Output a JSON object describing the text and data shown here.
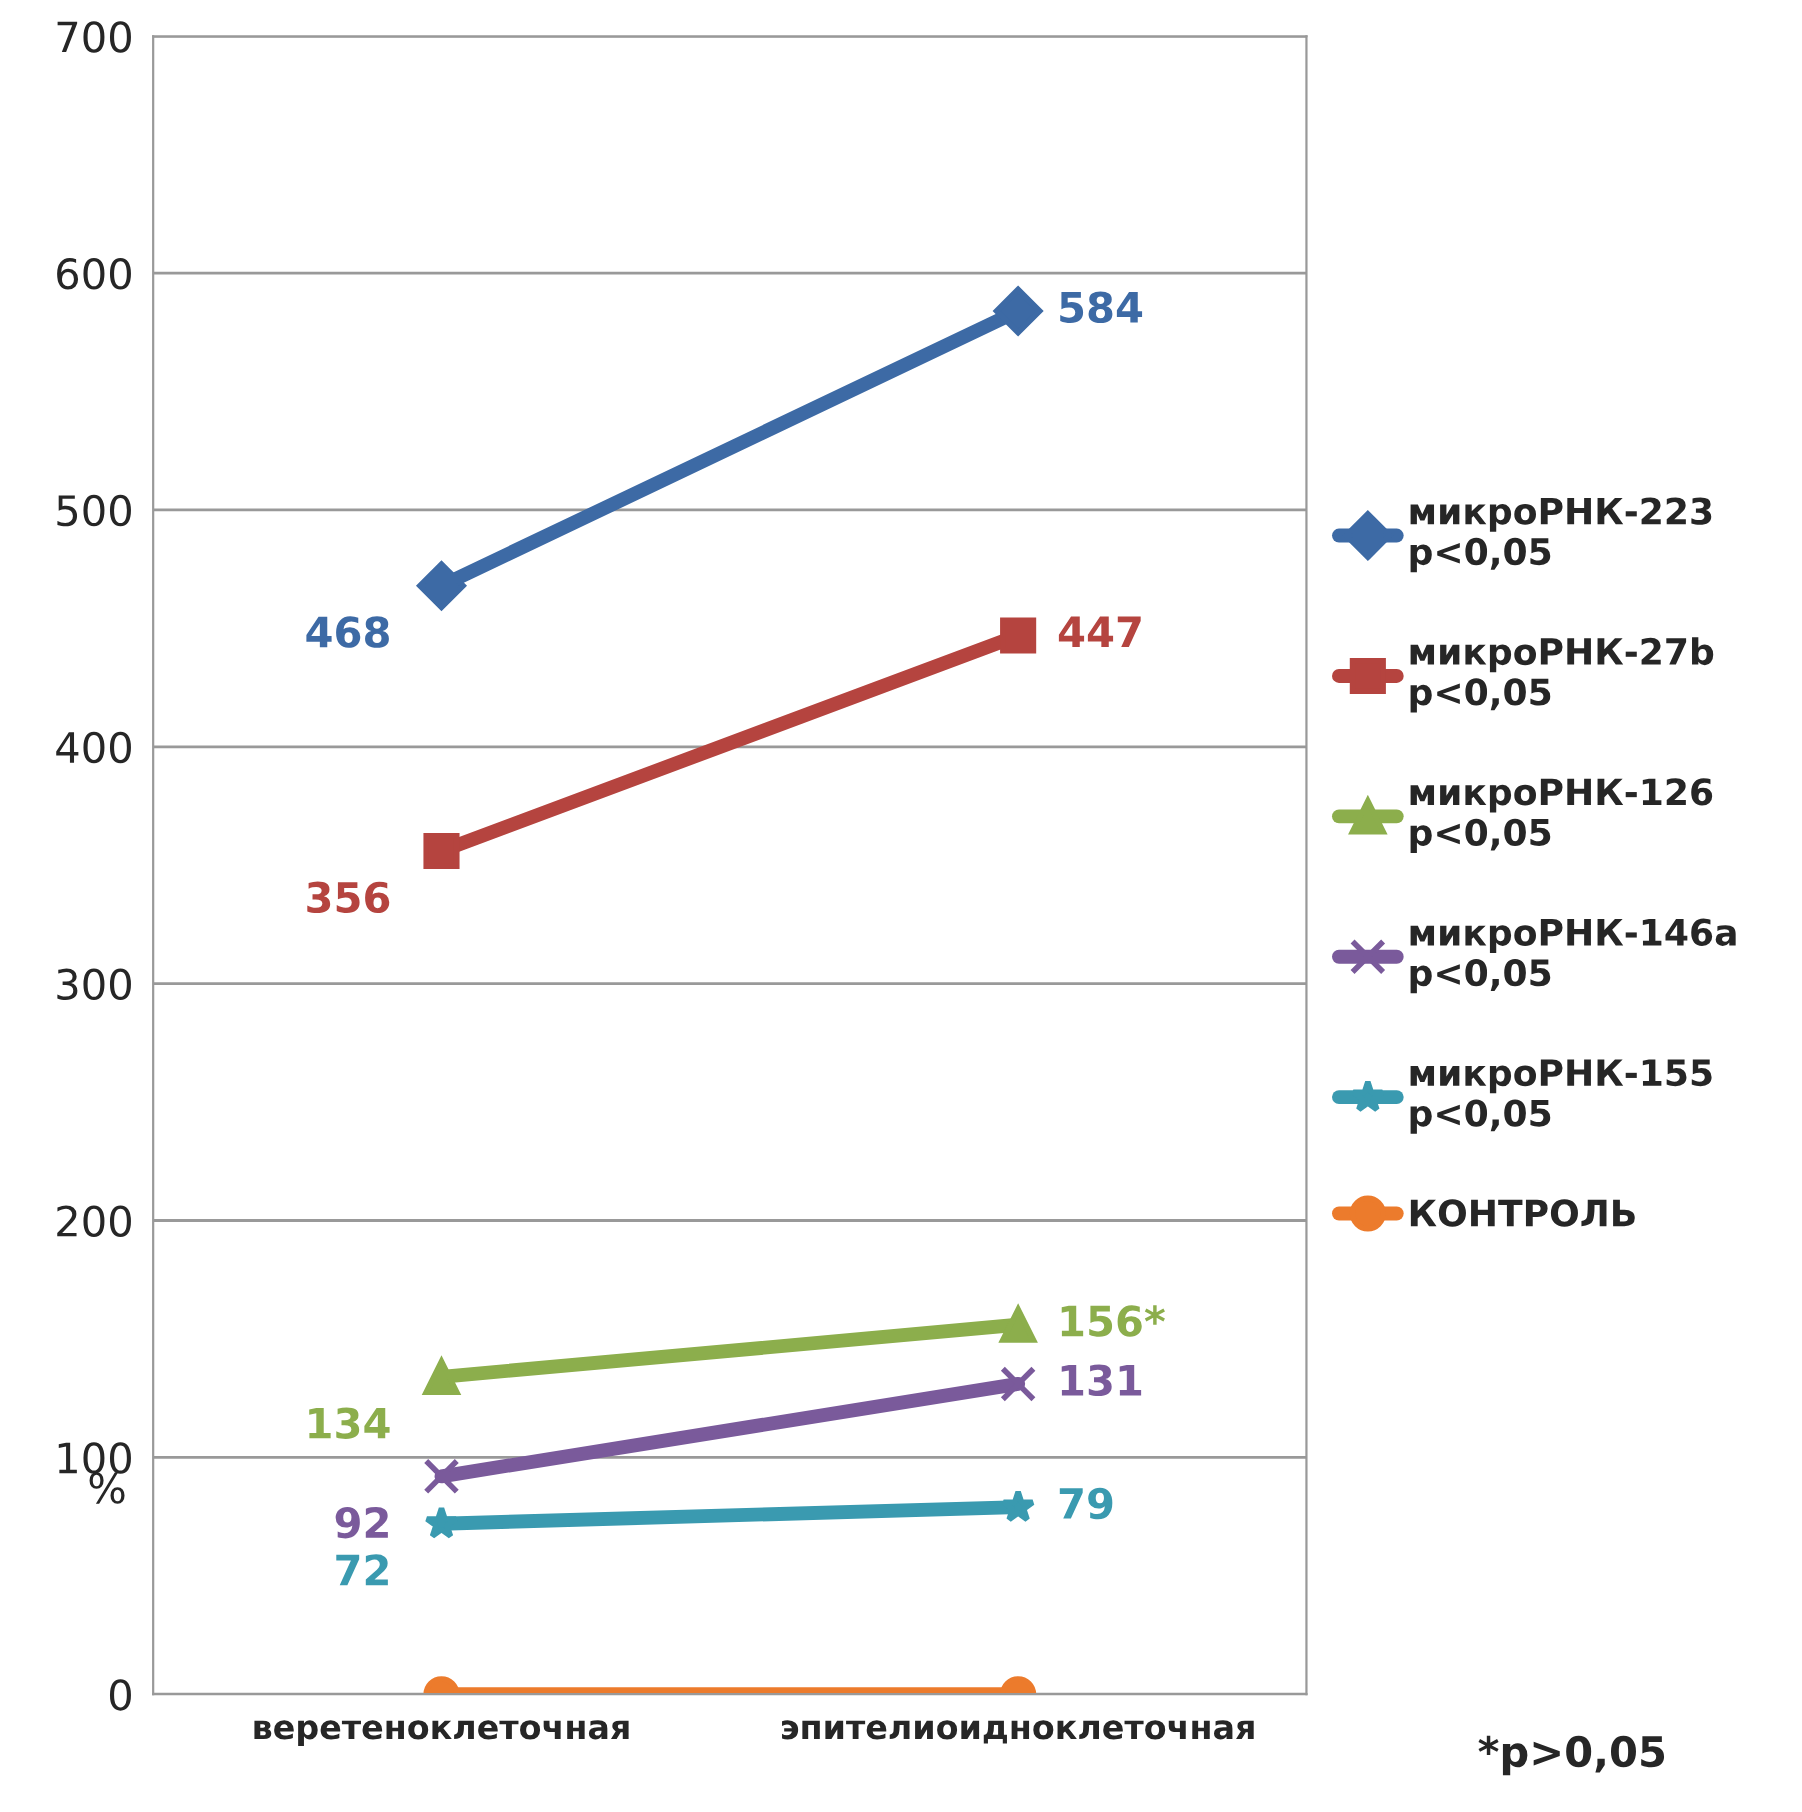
{
  "chart_data": {
    "type": "line",
    "ylabel": "%",
    "categories": [
      "веретеноклеточная",
      "эпителиоидноклеточная"
    ],
    "series": [
      {
        "name": "микроРНК-223\np<0,05",
        "color": "#3d6aa5",
        "marker": "diamond",
        "values": [
          468,
          584
        ],
        "value_labels": [
          "468",
          "584"
        ]
      },
      {
        "name": "микроРНК-27b\np<0,05",
        "color": "#b5443f",
        "marker": "square",
        "values": [
          356,
          447
        ],
        "value_labels": [
          "356",
          "447"
        ]
      },
      {
        "name": "микроРНК-126\np<0,05",
        "color": "#8cae4c",
        "marker": "triangle",
        "values": [
          134,
          156
        ],
        "value_labels": [
          "134",
          "156*"
        ]
      },
      {
        "name": "микроРНК-146a\np<0,05",
        "color": "#7a5a9b",
        "marker": "cross",
        "values": [
          92,
          131
        ],
        "value_labels": [
          "92",
          "131"
        ]
      },
      {
        "name": "микроРНК-155\np<0,05",
        "color": "#3a9ab0",
        "marker": "star",
        "values": [
          72,
          79
        ],
        "value_labels": [
          "72",
          "79"
        ]
      },
      {
        "name": "КОНТРОЛЬ",
        "color": "#ec7b2c",
        "marker": "circle",
        "values": [
          0,
          0
        ]
      }
    ],
    "ylim": [
      0,
      700
    ],
    "yticks": [
      0,
      100,
      200,
      300,
      400,
      500,
      600,
      700
    ],
    "grid": "y",
    "legend": "right",
    "line_style": "solid",
    "annotations": [
      "*p>0,05"
    ]
  }
}
